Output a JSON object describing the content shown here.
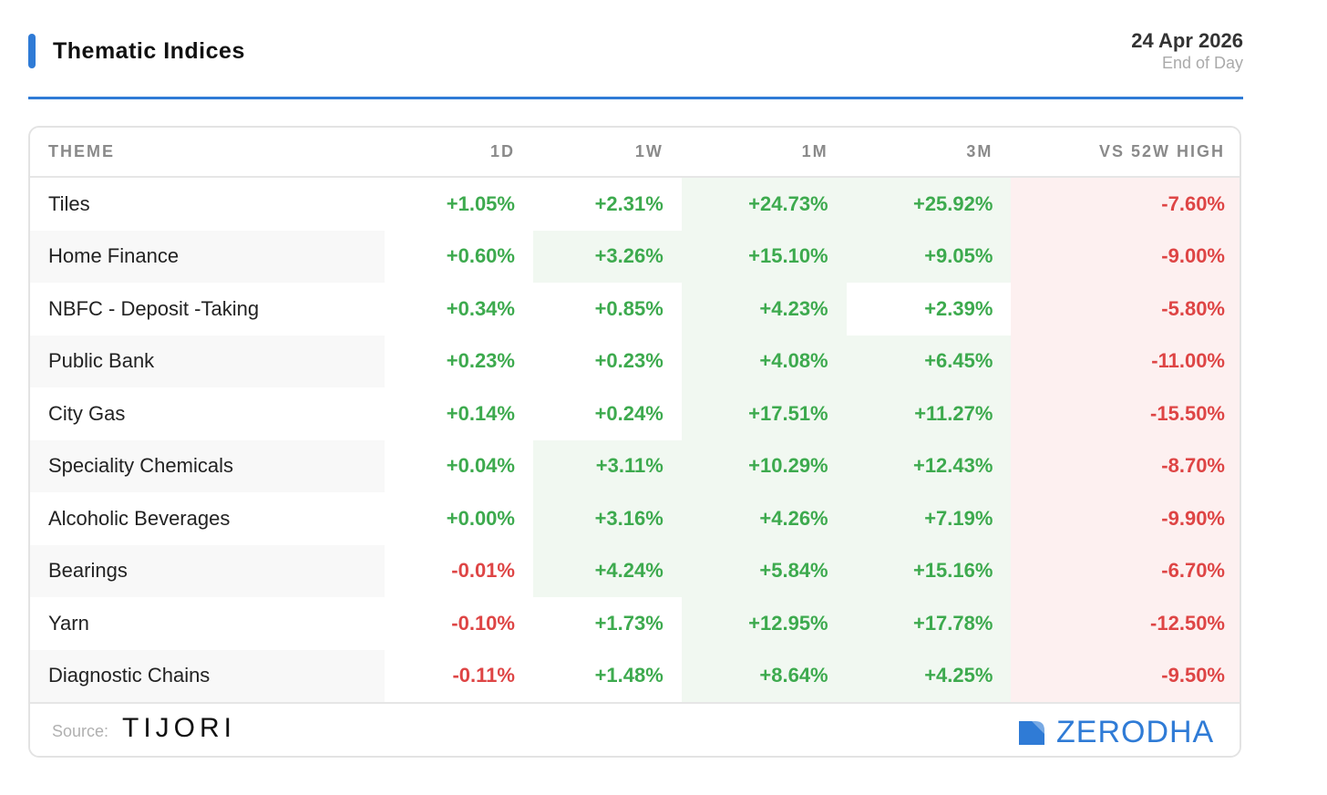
{
  "header": {
    "title": "Thematic Indices",
    "date": "24 Apr 2026",
    "subtitle": "End of Day"
  },
  "table": {
    "columns": [
      "THEME",
      "1D",
      "1W",
      "1M",
      "3M",
      "VS 52W HIGH"
    ],
    "rows": [
      {
        "theme": "Tiles",
        "d1": "+1.05%",
        "w1": "+2.31%",
        "m1": "+24.73%",
        "m3": "+25.92%",
        "h52": "-7.60%"
      },
      {
        "theme": "Home Finance",
        "d1": "+0.60%",
        "w1": "+3.26%",
        "m1": "+15.10%",
        "m3": "+9.05%",
        "h52": "-9.00%"
      },
      {
        "theme": "NBFC - Deposit -Taking",
        "d1": "+0.34%",
        "w1": "+0.85%",
        "m1": "+4.23%",
        "m3": "+2.39%",
        "h52": "-5.80%"
      },
      {
        "theme": "Public Bank",
        "d1": "+0.23%",
        "w1": "+0.23%",
        "m1": "+4.08%",
        "m3": "+6.45%",
        "h52": "-11.00%"
      },
      {
        "theme": "City Gas",
        "d1": "+0.14%",
        "w1": "+0.24%",
        "m1": "+17.51%",
        "m3": "+11.27%",
        "h52": "-15.50%"
      },
      {
        "theme": "Speciality Chemicals",
        "d1": "+0.04%",
        "w1": "+3.11%",
        "m1": "+10.29%",
        "m3": "+12.43%",
        "h52": "-8.70%"
      },
      {
        "theme": "Alcoholic Beverages",
        "d1": "+0.00%",
        "w1": "+3.16%",
        "m1": "+4.26%",
        "m3": "+7.19%",
        "h52": "-9.90%"
      },
      {
        "theme": "Bearings",
        "d1": "-0.01%",
        "w1": "+4.24%",
        "m1": "+5.84%",
        "m3": "+15.16%",
        "h52": "-6.70%"
      },
      {
        "theme": "Yarn",
        "d1": "-0.10%",
        "w1": "+1.73%",
        "m1": "+12.95%",
        "m3": "+17.78%",
        "h52": "-12.50%"
      },
      {
        "theme": "Diagnostic Chains",
        "d1": "-0.11%",
        "w1": "+1.48%",
        "m1": "+8.64%",
        "m3": "+4.25%",
        "h52": "-9.50%"
      }
    ]
  },
  "footer": {
    "source_label": "Source:",
    "source_brand": "TIJORI",
    "brand": "ZERODHA"
  },
  "colors": {
    "accent": "#2f7bd6",
    "positive": "#3daa4e",
    "negative": "#de4545",
    "positive_bg": "#f1f8f1",
    "negative_bg": "#fdf0f0"
  }
}
